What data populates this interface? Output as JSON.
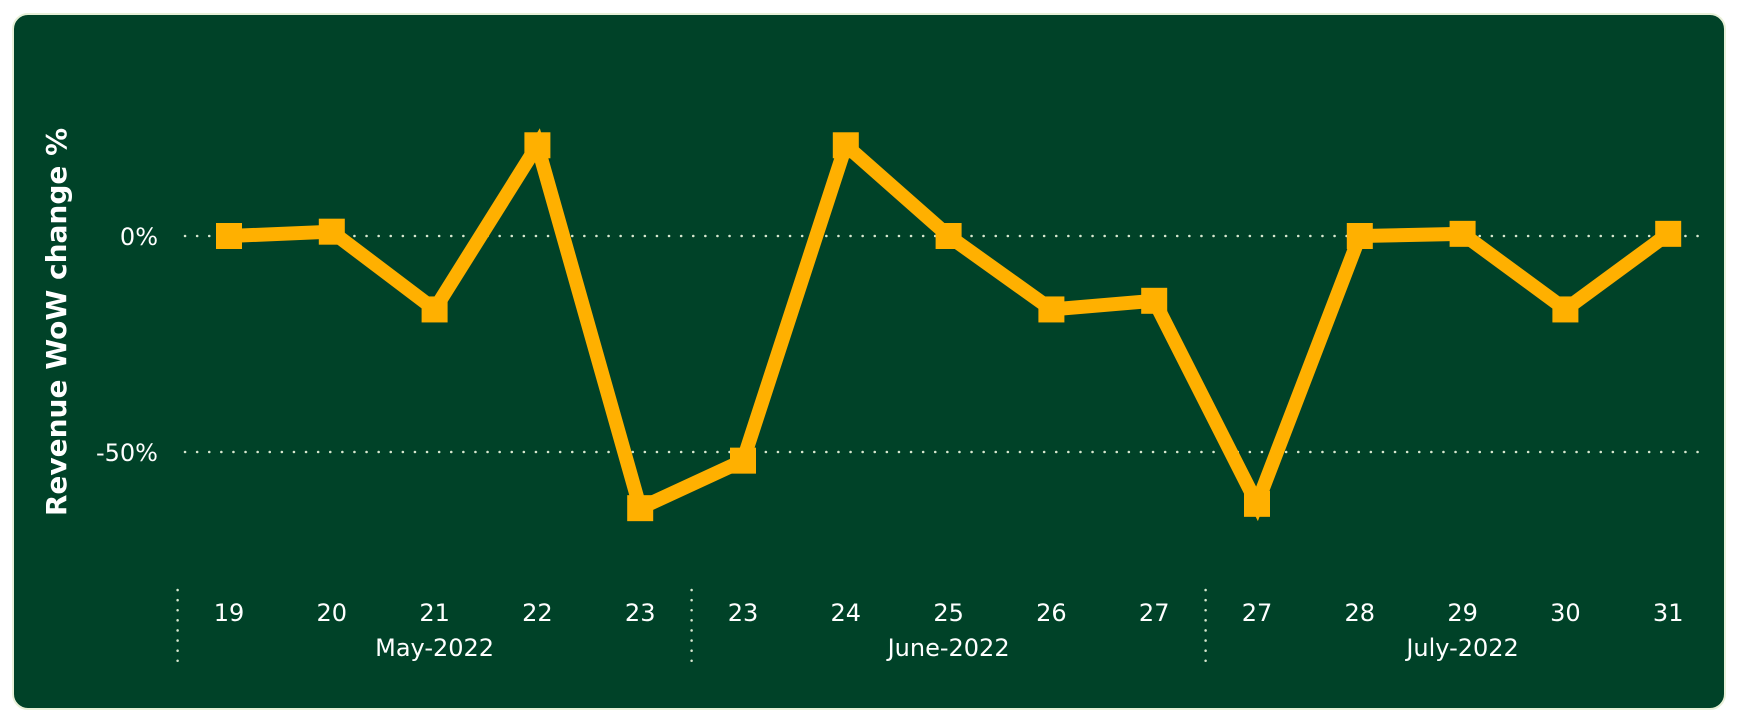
{
  "chart_data": {
    "type": "line",
    "ylabel": "Revenue WoW change %",
    "xlabel": "",
    "title": "",
    "y_ticks": [
      {
        "value": 0,
        "label": "0%"
      },
      {
        "value": -50,
        "label": "-50%"
      }
    ],
    "ylim": [
      -75,
      35
    ],
    "groups": [
      {
        "label": "May-2022",
        "days": [
          "19",
          "20",
          "21",
          "22",
          "23"
        ]
      },
      {
        "label": "June-2022",
        "days": [
          "23",
          "24",
          "25",
          "26",
          "27"
        ]
      },
      {
        "label": "July-2022",
        "days": [
          "27",
          "28",
          "29",
          "30",
          "31"
        ]
      }
    ],
    "series": [
      {
        "values": [
          0,
          1,
          -17,
          21,
          -63,
          -52,
          21,
          0,
          -17,
          -15,
          -62,
          0,
          0.5,
          -17,
          0.5
        ]
      }
    ],
    "grid": "dotted horizontal lines at y ticks",
    "colors": {
      "background": "#004228",
      "border": "#e8f0d8",
      "line": "#FFB000",
      "text": "#ffffff",
      "grid": "#d8e8d0"
    }
  }
}
